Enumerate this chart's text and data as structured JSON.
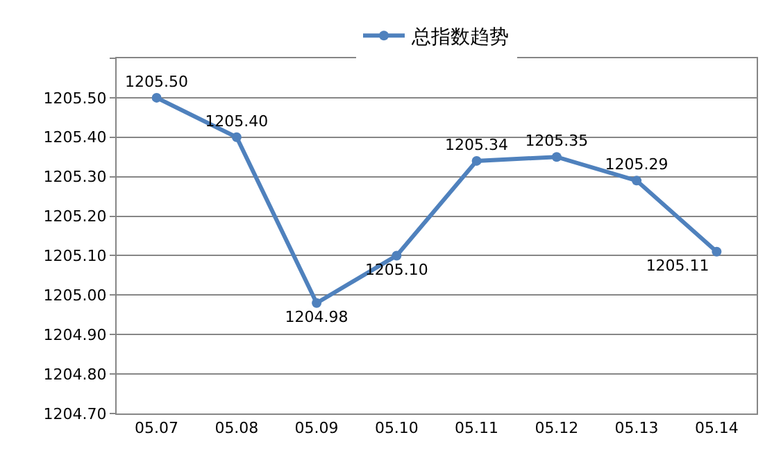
{
  "chart_data": {
    "type": "line",
    "categories": [
      "05.07",
      "05.08",
      "05.09",
      "05.10",
      "05.11",
      "05.12",
      "05.13",
      "05.14"
    ],
    "series": [
      {
        "name": "总指数趋势",
        "color": "#4f81bd",
        "values": [
          1205.5,
          1205.4,
          1204.98,
          1205.1,
          1205.34,
          1205.35,
          1205.29,
          1205.11
        ],
        "value_labels": [
          "1205.50",
          "1205.40",
          "1204.98",
          "1205.10",
          "1205.34",
          "1205.35",
          "1205.29",
          "1205.11"
        ]
      }
    ],
    "ylim": [
      1204.7,
      1205.6
    ],
    "yticks": [
      "1204.70",
      "1204.80",
      "1204.90",
      "1205.00",
      "1205.10",
      "1205.20",
      "1205.30",
      "1205.40",
      "1205.50",
      {
        "value": 1205.6,
        "label": null
      }
    ],
    "grid": "y",
    "legend": "top",
    "marker": "circle",
    "line_style": "solid"
  }
}
